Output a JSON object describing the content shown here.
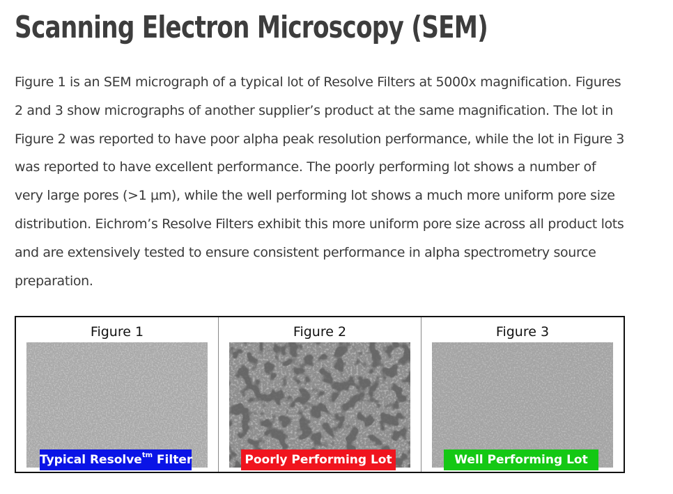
{
  "page": {
    "title": "Scanning Electron Microscopy (SEM)",
    "intro": "Figure 1 is an SEM micrograph of a typical lot of Resolve Filters at 5000x magnification. Figures 2 and 3 show micrographs of another supplier’s product at the same magnification. The lot in Figure 2 was reported to have poor alpha peak resolution performance, while the lot in Figure 3 was reported to have excellent performance. The poorly performing lot shows a number of very large pores (>1 µm), while the well performing lot shows a much more uniform pore size distribution. Eichrom’s Resolve Filters exhibit this more uniform pore size across all product lots and are extensively tested to ensure consistent performance in alpha spectrometry source preparation."
  },
  "figures": [
    {
      "label": "Figure 1",
      "caption_main": "Typical Resolve",
      "caption_sup": "tm",
      "caption_tail": " Filter",
      "banner_color": "#0a14e6"
    },
    {
      "label": "Figure 2",
      "caption_main": "Poorly Performing Lot",
      "caption_sup": "",
      "caption_tail": "",
      "banner_color": "#f0141e"
    },
    {
      "label": "Figure 3",
      "caption_main": "Well Performing Lot",
      "caption_sup": "",
      "caption_tail": "",
      "banner_color": "#14c814"
    }
  ]
}
